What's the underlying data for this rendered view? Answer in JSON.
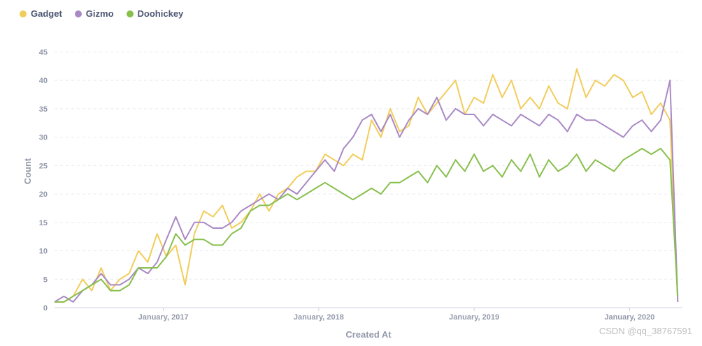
{
  "chart_data": {
    "type": "line",
    "title": "",
    "xlabel": "Created At",
    "ylabel": "Count",
    "ylim": [
      0,
      48
    ],
    "yticks": [
      0,
      5,
      10,
      15,
      20,
      25,
      30,
      35,
      40,
      45
    ],
    "xlim": [
      2016.3,
      2020.34
    ],
    "xtick_labels": [
      {
        "label": "January, 2017",
        "x": 2017.0
      },
      {
        "label": "January, 2018",
        "x": 2018.0
      },
      {
        "label": "January, 2019",
        "x": 2019.0
      },
      {
        "label": "January, 2020",
        "x": 2020.0
      }
    ],
    "series": [
      {
        "name": "Gadget",
        "color": "#f2cc5b",
        "points": [
          [
            2016.3,
            1
          ],
          [
            2016.36,
            1
          ],
          [
            2016.42,
            2
          ],
          [
            2016.48,
            5
          ],
          [
            2016.54,
            3
          ],
          [
            2016.6,
            7
          ],
          [
            2016.66,
            3
          ],
          [
            2016.72,
            5
          ],
          [
            2016.78,
            6
          ],
          [
            2016.84,
            10
          ],
          [
            2016.9,
            8
          ],
          [
            2016.96,
            13
          ],
          [
            2017.02,
            9
          ],
          [
            2017.08,
            11
          ],
          [
            2017.14,
            4
          ],
          [
            2017.2,
            13
          ],
          [
            2017.26,
            17
          ],
          [
            2017.32,
            16
          ],
          [
            2017.38,
            18
          ],
          [
            2017.44,
            14
          ],
          [
            2017.5,
            15
          ],
          [
            2017.56,
            17
          ],
          [
            2017.62,
            20
          ],
          [
            2017.68,
            17
          ],
          [
            2017.74,
            20
          ],
          [
            2017.8,
            21
          ],
          [
            2017.86,
            23
          ],
          [
            2017.92,
            24
          ],
          [
            2017.98,
            24
          ],
          [
            2018.04,
            27
          ],
          [
            2018.1,
            26
          ],
          [
            2018.16,
            25
          ],
          [
            2018.22,
            27
          ],
          [
            2018.28,
            26
          ],
          [
            2018.34,
            33
          ],
          [
            2018.4,
            30
          ],
          [
            2018.46,
            35
          ],
          [
            2018.52,
            31
          ],
          [
            2018.58,
            32
          ],
          [
            2018.64,
            37
          ],
          [
            2018.7,
            34
          ],
          [
            2018.76,
            36
          ],
          [
            2018.82,
            38
          ],
          [
            2018.88,
            40
          ],
          [
            2018.94,
            34
          ],
          [
            2019.0,
            37
          ],
          [
            2019.06,
            36
          ],
          [
            2019.12,
            41
          ],
          [
            2019.18,
            37
          ],
          [
            2019.24,
            40
          ],
          [
            2019.3,
            35
          ],
          [
            2019.36,
            37
          ],
          [
            2019.42,
            35
          ],
          [
            2019.48,
            39
          ],
          [
            2019.54,
            36
          ],
          [
            2019.6,
            35
          ],
          [
            2019.66,
            42
          ],
          [
            2019.72,
            37
          ],
          [
            2019.78,
            40
          ],
          [
            2019.84,
            39
          ],
          [
            2019.9,
            41
          ],
          [
            2019.96,
            40
          ],
          [
            2020.02,
            37
          ],
          [
            2020.08,
            38
          ],
          [
            2020.14,
            34
          ],
          [
            2020.2,
            36
          ],
          [
            2020.26,
            33
          ],
          [
            2020.31,
            1
          ]
        ]
      },
      {
        "name": "Gizmo",
        "color": "#a989c5",
        "points": [
          [
            2016.3,
            1
          ],
          [
            2016.36,
            2
          ],
          [
            2016.42,
            1
          ],
          [
            2016.48,
            3
          ],
          [
            2016.54,
            4
          ],
          [
            2016.6,
            6
          ],
          [
            2016.66,
            4
          ],
          [
            2016.72,
            4
          ],
          [
            2016.78,
            5
          ],
          [
            2016.84,
            7
          ],
          [
            2016.9,
            6
          ],
          [
            2016.96,
            8
          ],
          [
            2017.02,
            12
          ],
          [
            2017.08,
            16
          ],
          [
            2017.14,
            12
          ],
          [
            2017.2,
            15
          ],
          [
            2017.26,
            15
          ],
          [
            2017.32,
            14
          ],
          [
            2017.38,
            14
          ],
          [
            2017.44,
            15
          ],
          [
            2017.5,
            17
          ],
          [
            2017.56,
            18
          ],
          [
            2017.62,
            19
          ],
          [
            2017.68,
            20
          ],
          [
            2017.74,
            19
          ],
          [
            2017.8,
            21
          ],
          [
            2017.86,
            20
          ],
          [
            2017.92,
            22
          ],
          [
            2017.98,
            24
          ],
          [
            2018.04,
            26
          ],
          [
            2018.1,
            24
          ],
          [
            2018.16,
            28
          ],
          [
            2018.22,
            30
          ],
          [
            2018.28,
            33
          ],
          [
            2018.34,
            34
          ],
          [
            2018.4,
            31
          ],
          [
            2018.46,
            34
          ],
          [
            2018.52,
            30
          ],
          [
            2018.58,
            33
          ],
          [
            2018.64,
            35
          ],
          [
            2018.7,
            34
          ],
          [
            2018.76,
            37
          ],
          [
            2018.82,
            33
          ],
          [
            2018.88,
            35
          ],
          [
            2018.94,
            34
          ],
          [
            2019.0,
            34
          ],
          [
            2019.06,
            32
          ],
          [
            2019.12,
            34
          ],
          [
            2019.18,
            33
          ],
          [
            2019.24,
            32
          ],
          [
            2019.3,
            34
          ],
          [
            2019.36,
            33
          ],
          [
            2019.42,
            32
          ],
          [
            2019.48,
            34
          ],
          [
            2019.54,
            33
          ],
          [
            2019.6,
            31
          ],
          [
            2019.66,
            34
          ],
          [
            2019.72,
            33
          ],
          [
            2019.78,
            33
          ],
          [
            2019.84,
            32
          ],
          [
            2019.9,
            31
          ],
          [
            2019.96,
            30
          ],
          [
            2020.02,
            32
          ],
          [
            2020.08,
            33
          ],
          [
            2020.14,
            31
          ],
          [
            2020.2,
            33
          ],
          [
            2020.26,
            40
          ],
          [
            2020.31,
            1
          ]
        ]
      },
      {
        "name": "Doohickey",
        "color": "#88bf4d",
        "points": [
          [
            2016.3,
            1
          ],
          [
            2016.36,
            1
          ],
          [
            2016.42,
            2
          ],
          [
            2016.48,
            3
          ],
          [
            2016.54,
            4
          ],
          [
            2016.6,
            5
          ],
          [
            2016.66,
            3
          ],
          [
            2016.72,
            3
          ],
          [
            2016.78,
            4
          ],
          [
            2016.84,
            7
          ],
          [
            2016.9,
            7
          ],
          [
            2016.96,
            7
          ],
          [
            2017.02,
            9
          ],
          [
            2017.08,
            13
          ],
          [
            2017.14,
            11
          ],
          [
            2017.2,
            12
          ],
          [
            2017.26,
            12
          ],
          [
            2017.32,
            11
          ],
          [
            2017.38,
            11
          ],
          [
            2017.44,
            13
          ],
          [
            2017.5,
            14
          ],
          [
            2017.56,
            17
          ],
          [
            2017.62,
            18
          ],
          [
            2017.68,
            18
          ],
          [
            2017.74,
            19
          ],
          [
            2017.8,
            20
          ],
          [
            2017.86,
            19
          ],
          [
            2017.92,
            20
          ],
          [
            2017.98,
            21
          ],
          [
            2018.04,
            22
          ],
          [
            2018.1,
            21
          ],
          [
            2018.16,
            20
          ],
          [
            2018.22,
            19
          ],
          [
            2018.28,
            20
          ],
          [
            2018.34,
            21
          ],
          [
            2018.4,
            20
          ],
          [
            2018.46,
            22
          ],
          [
            2018.52,
            22
          ],
          [
            2018.58,
            23
          ],
          [
            2018.64,
            24
          ],
          [
            2018.7,
            22
          ],
          [
            2018.76,
            25
          ],
          [
            2018.82,
            23
          ],
          [
            2018.88,
            26
          ],
          [
            2018.94,
            24
          ],
          [
            2019.0,
            27
          ],
          [
            2019.06,
            24
          ],
          [
            2019.12,
            25
          ],
          [
            2019.18,
            23
          ],
          [
            2019.24,
            26
          ],
          [
            2019.3,
            24
          ],
          [
            2019.36,
            27
          ],
          [
            2019.42,
            23
          ],
          [
            2019.48,
            26
          ],
          [
            2019.54,
            24
          ],
          [
            2019.6,
            25
          ],
          [
            2019.66,
            27
          ],
          [
            2019.72,
            24
          ],
          [
            2019.78,
            26
          ],
          [
            2019.84,
            25
          ],
          [
            2019.9,
            24
          ],
          [
            2019.96,
            26
          ],
          [
            2020.02,
            27
          ],
          [
            2020.08,
            28
          ],
          [
            2020.14,
            27
          ],
          [
            2020.2,
            28
          ],
          [
            2020.26,
            26
          ],
          [
            2020.31,
            2
          ]
        ]
      }
    ]
  },
  "watermark": "CSDN @qq_38767591"
}
